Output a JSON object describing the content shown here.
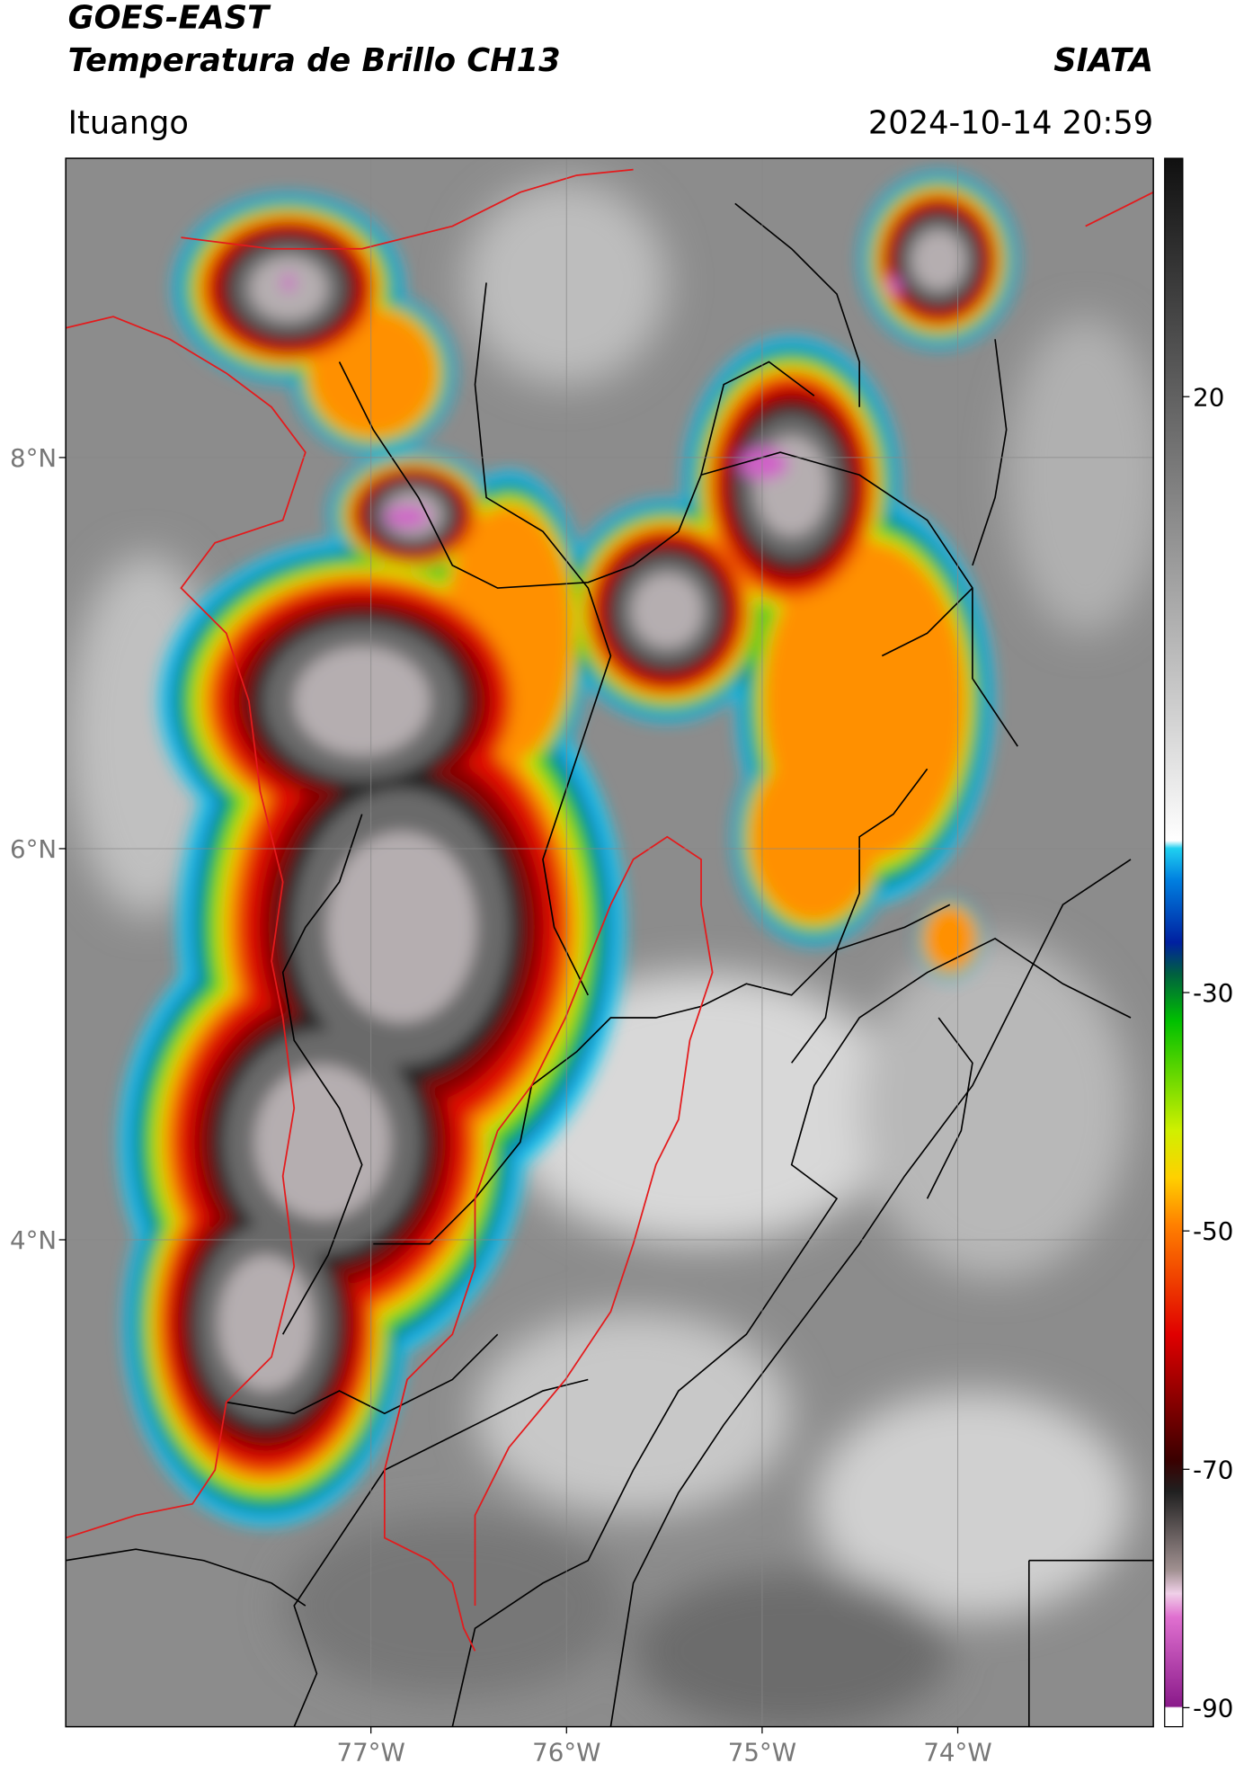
{
  "header": {
    "title": "GOES-EAST",
    "subtitle": "Temperatura de Brillo CH13",
    "source": "SIATA",
    "location": "Ituango",
    "datetime": "2024-10-14 20:59"
  },
  "map": {
    "xlim": [
      -78.56,
      -73
    ],
    "ylim": [
      1.51,
      9.53
    ],
    "xticks": [
      {
        "value": -77,
        "label": "77°W"
      },
      {
        "value": -76,
        "label": "76°W"
      },
      {
        "value": -75,
        "label": "75°W"
      },
      {
        "value": -74,
        "label": "74°W"
      }
    ],
    "yticks": [
      {
        "value": 8,
        "label": "8°N"
      },
      {
        "value": 6,
        "label": "6°N"
      },
      {
        "value": 4,
        "label": "4°N"
      }
    ],
    "grid": true
  },
  "colorbar": {
    "clim": [
      -91.6,
      40
    ],
    "ticks": [
      20,
      -30,
      -50,
      -70,
      -90
    ]
  }
}
